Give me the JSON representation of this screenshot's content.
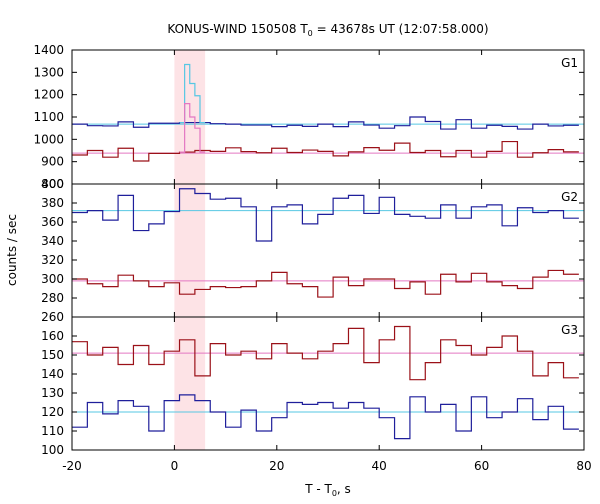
{
  "chart_data": {
    "type": "line",
    "title_prefix": "KONUS-WIND 150508 T",
    "title_sub": "0",
    "title_suffix": " = 43678s UT (12:07:58.000)",
    "ylabel": "counts / sec",
    "xlabel_prefix": "T - T",
    "xlabel_sub": "0",
    "xlabel_suffix": ", s",
    "xlim": [
      -20,
      80
    ],
    "xticks": [
      -20,
      0,
      20,
      40,
      60,
      80
    ],
    "highlight_interval": [
      0,
      6
    ],
    "colors": {
      "dark_red": "#9b1118",
      "blue": "#1f1f9b",
      "pink": "#e377c2",
      "cyan": "#56c7e3",
      "highlight": "#fde3e6"
    },
    "panels": [
      {
        "label": "G1",
        "ylim": [
          800,
          1400
        ],
        "yticks": [
          800,
          900,
          1000,
          1100,
          1200,
          1300,
          1400
        ],
        "bin_edges": [
          -20,
          -17,
          -14,
          -11,
          -8,
          -5,
          -2,
          1,
          4,
          7,
          10,
          13,
          16,
          19,
          22,
          25,
          28,
          31,
          34,
          37,
          40,
          43,
          46,
          49,
          52,
          55,
          58,
          61,
          64,
          67,
          70,
          73,
          76,
          79
        ],
        "series": [
          {
            "color": "blue",
            "values": [
              1068,
              1061,
              1060,
              1078,
              1054,
              1072,
              1072,
              1075,
              1075,
              1070,
              1068,
              1064,
              1064,
              1057,
              1063,
              1058,
              1068,
              1057,
              1078,
              1064,
              1050,
              1061,
              1100,
              1080,
              1046,
              1088,
              1050,
              1063,
              1058,
              1046,
              1068,
              1060,
              1063
            ]
          },
          {
            "color": "dark_red",
            "values": [
              930,
              950,
              920,
              960,
              903,
              937,
              937,
              943,
              950,
              946,
              962,
              945,
              940,
              960,
              941,
              952,
              946,
              926,
              944,
              963,
              951,
              983,
              941,
              950,
              922,
              950,
              920,
              946,
              990,
              920,
              940,
              954,
              944
            ]
          }
        ],
        "peak_series": [
          {
            "color": "cyan",
            "bin_edges": [
              1,
              2,
              3,
              4,
              5,
              6
            ],
            "values": [
              1075,
              1335,
              1250,
              1195,
              1075
            ]
          },
          {
            "color": "pink",
            "bin_edges": [
              1,
              2,
              3,
              4,
              5,
              6
            ],
            "values": [
              943,
              1160,
              1100,
              1050,
              943
            ]
          }
        ],
        "backgrounds": [
          {
            "color": "cyan",
            "value": 1068
          },
          {
            "color": "pink",
            "value": 938
          }
        ]
      },
      {
        "label": "G2",
        "ylim": [
          260,
          400
        ],
        "yticks": [
          260,
          280,
          300,
          320,
          340,
          360,
          380,
          400
        ],
        "bin_edges": [
          -20,
          -17,
          -14,
          -11,
          -8,
          -5,
          -2,
          1,
          4,
          7,
          10,
          13,
          16,
          19,
          22,
          25,
          28,
          31,
          34,
          37,
          40,
          43,
          46,
          49,
          52,
          55,
          58,
          61,
          64,
          67,
          70,
          73,
          76,
          79
        ],
        "series": [
          {
            "color": "blue",
            "values": [
              370,
              372,
              362,
              388,
              351,
              358,
              371,
              395,
              390,
              384,
              385,
              376,
              340,
              376,
              378,
              358,
              368,
              385,
              388,
              369,
              386,
              368,
              366,
              364,
              378,
              364,
              376,
              378,
              356,
              375,
              370,
              372,
              364
            ]
          },
          {
            "color": "dark_red",
            "values": [
              300,
              295,
              292,
              304,
              298,
              292,
              296,
              284,
              289,
              292,
              291,
              292,
              298,
              307,
              295,
              292,
              281,
              302,
              293,
              300,
              300,
              290,
              297,
              284,
              305,
              297,
              306,
              297,
              293,
              290,
              302,
              309,
              305
            ]
          }
        ],
        "backgrounds": [
          {
            "color": "cyan",
            "value": 372
          },
          {
            "color": "pink",
            "value": 298
          }
        ]
      },
      {
        "label": "G3",
        "ylim": [
          100,
          170
        ],
        "yticks": [
          100,
          110,
          120,
          130,
          140,
          150,
          160
        ],
        "bin_edges": [
          -20,
          -17,
          -14,
          -11,
          -8,
          -5,
          -2,
          1,
          4,
          7,
          10,
          13,
          16,
          19,
          22,
          25,
          28,
          31,
          34,
          37,
          40,
          43,
          46,
          49,
          52,
          55,
          58,
          61,
          64,
          67,
          70,
          73,
          76,
          79
        ],
        "series": [
          {
            "color": "dark_red",
            "values": [
              157,
              150,
              154,
              145,
              155,
              145,
              152,
              158,
              139,
              156,
              150,
              152,
              148,
              156,
              151,
              148,
              152,
              156,
              164,
              146,
              158,
              165,
              137,
              146,
              158,
              155,
              150,
              154,
              160,
              152,
              139,
              146,
              138
            ]
          },
          {
            "color": "blue",
            "values": [
              112,
              125,
              119,
              126,
              123,
              110,
              126,
              129,
              126,
              120,
              112,
              121,
              110,
              117,
              125,
              124,
              125,
              122,
              125,
              122,
              117,
              106,
              128,
              120,
              124,
              110,
              128,
              117,
              120,
              127,
              116,
              123,
              111
            ]
          }
        ],
        "backgrounds": [
          {
            "color": "pink",
            "value": 151
          },
          {
            "color": "cyan",
            "value": 120
          }
        ]
      }
    ]
  }
}
